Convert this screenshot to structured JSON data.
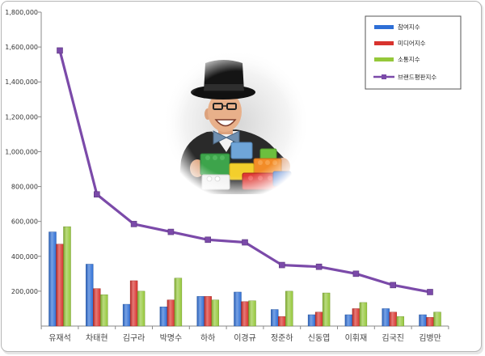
{
  "chart_data": {
    "type": "bar",
    "categories": [
      "유재석",
      "차태현",
      "김구라",
      "박명수",
      "하하",
      "이경규",
      "정준하",
      "신동엽",
      "이휘재",
      "김국진",
      "김병만"
    ],
    "series": [
      {
        "name": "참여지수",
        "type": "bar",
        "color": "#2e6fd6",
        "values": [
          540000,
          355000,
          125000,
          110000,
          170000,
          195000,
          95000,
          65000,
          65000,
          100000,
          65000
        ]
      },
      {
        "name": "미디어지수",
        "type": "bar",
        "color": "#d8332e",
        "values": [
          470000,
          215000,
          260000,
          150000,
          170000,
          140000,
          55000,
          80000,
          100000,
          80000,
          50000
        ]
      },
      {
        "name": "소통지수",
        "type": "bar",
        "color": "#95c83a",
        "values": [
          570000,
          180000,
          200000,
          275000,
          150000,
          145000,
          200000,
          190000,
          135000,
          55000,
          80000
        ]
      },
      {
        "name": "브랜드평판지수",
        "type": "line",
        "color": "#7b4aa9",
        "values": [
          1580000,
          755000,
          585000,
          540000,
          495000,
          480000,
          350000,
          340000,
          300000,
          235000,
          195000
        ]
      }
    ],
    "ylim": [
      0,
      1800000
    ],
    "yticks": [
      200000,
      400000,
      600000,
      800000,
      1000000,
      1200000,
      1400000,
      1600000,
      1800000
    ],
    "ytick_labels": [
      "200,000",
      "400,000",
      "600,000",
      "800,000",
      "1,000,000",
      "1,200,000",
      "1,400,000",
      "1,600,000",
      "1,800,000"
    ],
    "legend_position": "top-right",
    "grid": false
  }
}
